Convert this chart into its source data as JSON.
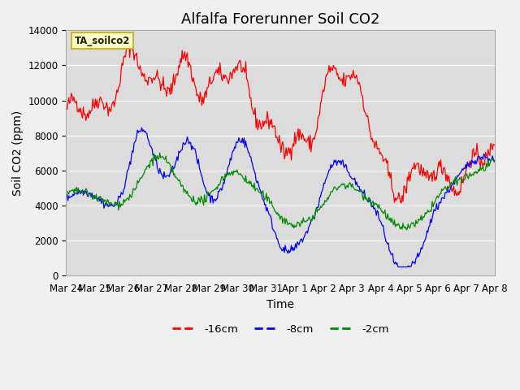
{
  "title": "Alfalfa Forerunner Soil CO2",
  "xlabel": "Time",
  "ylabel": "Soil CO2 (ppm)",
  "ylim": [
    0,
    14000
  ],
  "yticks": [
    0,
    2000,
    4000,
    6000,
    8000,
    10000,
    12000,
    14000
  ],
  "annotation": "TA_soilco2",
  "color_red": "#ff0000",
  "color_blue": "#0000ff",
  "color_green": "#008800",
  "legend_labels": [
    "-16cm",
    "-8cm",
    "-2cm"
  ],
  "bg_color": "#dcdcdc",
  "grid_color": "#ffffff",
  "title_fontsize": 13,
  "label_fontsize": 10,
  "tick_fontsize": 8.5,
  "tick_labels": [
    "Mar 24",
    "Mar 25",
    "Mar 26",
    "Mar 27",
    "Mar 28",
    "Mar 29",
    "Mar 30",
    "Mar 31",
    "Apr 1",
    "Apr 2",
    "Apr 3",
    "Apr 4",
    "Apr 5",
    "Apr 6",
    "Apr 7",
    "Apr 8"
  ]
}
